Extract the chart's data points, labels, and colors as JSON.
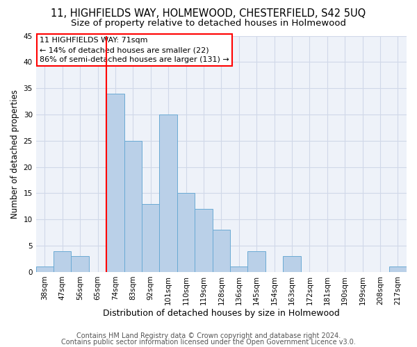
{
  "title1": "11, HIGHFIELDS WAY, HOLMEWOOD, CHESTERFIELD, S42 5UQ",
  "title2": "Size of property relative to detached houses in Holmewood",
  "xlabel": "Distribution of detached houses by size in Holmewood",
  "ylabel": "Number of detached properties",
  "categories": [
    "38sqm",
    "47sqm",
    "56sqm",
    "65sqm",
    "74sqm",
    "83sqm",
    "92sqm",
    "101sqm",
    "110sqm",
    "119sqm",
    "128sqm",
    "136sqm",
    "145sqm",
    "154sqm",
    "163sqm",
    "172sqm",
    "181sqm",
    "190sqm",
    "199sqm",
    "208sqm",
    "217sqm"
  ],
  "values": [
    1,
    4,
    3,
    0,
    34,
    25,
    13,
    30,
    15,
    12,
    8,
    1,
    4,
    0,
    3,
    0,
    0,
    0,
    0,
    0,
    1
  ],
  "bar_color": "#bad0e8",
  "bar_edge_color": "#6aaad4",
  "red_line_index": 4,
  "annotation_line1": "11 HIGHFIELDS WAY: 71sqm",
  "annotation_line2": "← 14% of detached houses are smaller (22)",
  "annotation_line3": "86% of semi-detached houses are larger (131) →",
  "ylim": [
    0,
    45
  ],
  "yticks": [
    0,
    5,
    10,
    15,
    20,
    25,
    30,
    35,
    40,
    45
  ],
  "footer1": "Contains HM Land Registry data © Crown copyright and database right 2024.",
  "footer2": "Contains public sector information licensed under the Open Government Licence v3.0.",
  "bg_color": "#eef2f9",
  "grid_color": "#d0d8e8",
  "title1_fontsize": 10.5,
  "title2_fontsize": 9.5,
  "xlabel_fontsize": 9,
  "ylabel_fontsize": 8.5,
  "tick_fontsize": 7.5,
  "annot_fontsize": 8,
  "footer_fontsize": 7
}
